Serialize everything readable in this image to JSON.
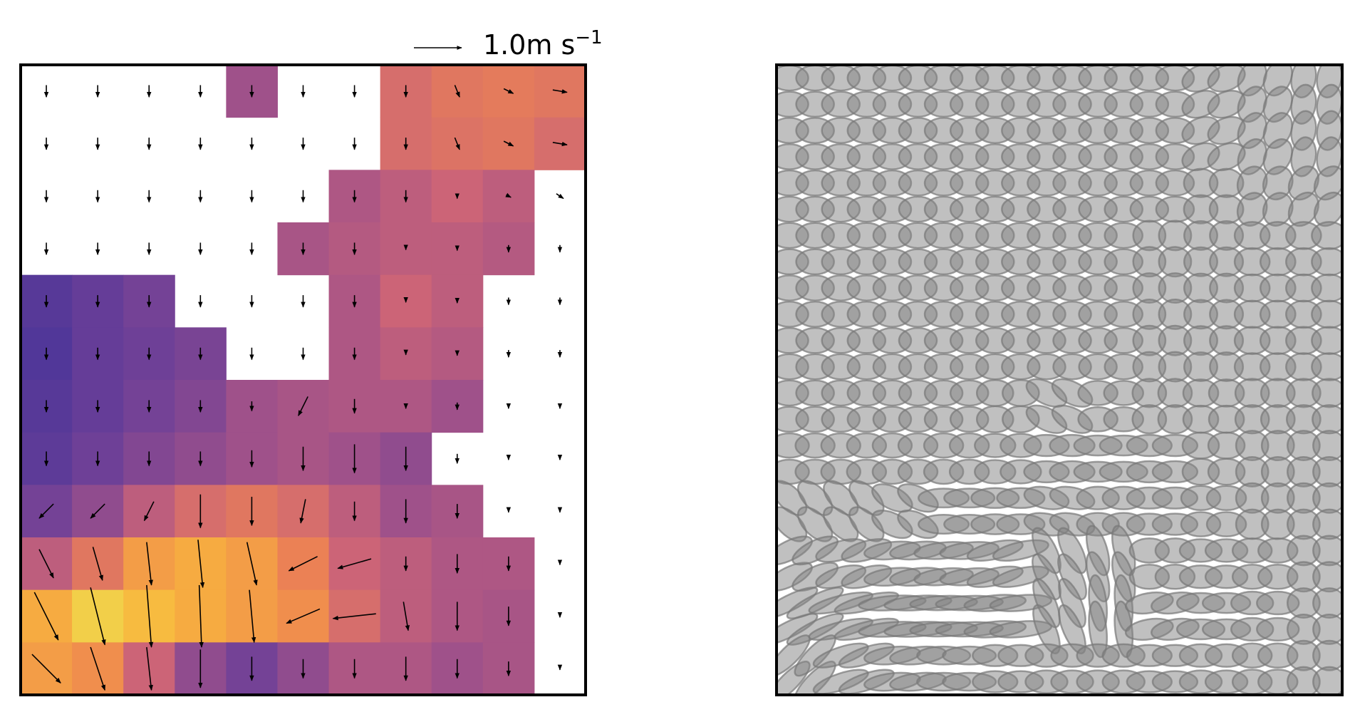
{
  "chart_data": {
    "type": "quiver",
    "key": {
      "value": 1.0,
      "label": "1.0m s",
      "exponent": "−1"
    },
    "colormap": [
      "#3a2f99",
      "#6a3f98",
      "#9a4f8c",
      "#cc6477",
      "#ee8451",
      "#f8b53d",
      "#e9f65c"
    ],
    "field": [
      [
        null,
        null,
        null,
        null,
        0.35,
        null,
        null,
        0.55,
        0.6,
        0.62,
        0.6
      ],
      [
        null,
        null,
        null,
        null,
        null,
        null,
        null,
        0.55,
        0.58,
        0.6,
        0.55
      ],
      [
        null,
        null,
        null,
        null,
        null,
        null,
        0.4,
        0.45,
        0.5,
        0.45,
        null
      ],
      [
        null,
        null,
        null,
        null,
        null,
        0.38,
        0.42,
        0.45,
        0.45,
        0.42,
        null
      ],
      [
        0.1,
        0.15,
        0.2,
        null,
        null,
        null,
        0.4,
        0.5,
        0.45,
        null,
        null
      ],
      [
        0.08,
        0.15,
        0.18,
        0.22,
        null,
        null,
        0.4,
        0.45,
        0.42,
        null,
        null
      ],
      [
        0.1,
        0.15,
        0.2,
        0.25,
        0.35,
        0.38,
        0.4,
        0.4,
        0.35,
        null,
        null
      ],
      [
        0.12,
        0.18,
        0.25,
        0.3,
        0.35,
        0.38,
        0.35,
        0.3,
        null,
        null,
        null
      ],
      [
        0.2,
        0.3,
        0.45,
        0.55,
        0.6,
        0.55,
        0.45,
        0.35,
        0.38,
        null,
        null
      ],
      [
        0.45,
        0.6,
        0.75,
        0.8,
        0.75,
        0.65,
        0.5,
        0.45,
        0.4,
        0.4,
        null
      ],
      [
        0.8,
        0.9,
        0.85,
        0.8,
        0.75,
        0.7,
        0.55,
        0.45,
        0.4,
        0.38,
        null
      ],
      [
        0.75,
        0.7,
        0.5,
        0.3,
        0.2,
        0.3,
        0.4,
        0.4,
        0.35,
        0.38,
        null
      ]
    ],
    "u": [
      [
        0,
        0,
        0,
        0,
        0,
        0,
        0,
        0,
        0.1,
        0.2,
        0.3
      ],
      [
        0,
        0,
        0,
        0,
        0,
        0,
        0,
        0,
        0.1,
        0.2,
        0.3
      ],
      [
        0,
        0,
        0,
        0,
        0,
        0,
        0,
        0,
        0,
        0.1,
        0.15
      ],
      [
        0,
        0,
        0,
        0,
        0,
        0,
        0,
        0,
        0,
        0,
        0
      ],
      [
        0,
        0,
        0,
        0,
        0,
        0,
        0,
        0,
        0,
        0,
        0
      ],
      [
        0,
        0,
        0,
        0,
        0,
        0,
        0,
        0,
        0,
        0,
        0
      ],
      [
        0,
        0,
        0,
        0,
        0,
        -0.2,
        0,
        0,
        0,
        0,
        0
      ],
      [
        0,
        0,
        0,
        0,
        0,
        0,
        0,
        0,
        0,
        0,
        0
      ],
      [
        -0.3,
        -0.3,
        -0.2,
        0,
        0,
        -0.1,
        0,
        0,
        0,
        0,
        0
      ],
      [
        0.3,
        0.2,
        0.1,
        0.1,
        0.2,
        -0.6,
        -0.7,
        0,
        0,
        0,
        0
      ],
      [
        0.5,
        0.3,
        0.1,
        0.05,
        0.1,
        -0.7,
        -0.9,
        0.1,
        0,
        0,
        0
      ],
      [
        0.6,
        0.3,
        0.1,
        0,
        0,
        0,
        0,
        0,
        0,
        0,
        0
      ]
    ],
    "v": [
      [
        -0.25,
        -0.25,
        -0.25,
        -0.25,
        -0.25,
        -0.25,
        -0.25,
        -0.25,
        -0.25,
        -0.1,
        -0.05
      ],
      [
        -0.25,
        -0.25,
        -0.25,
        -0.25,
        -0.25,
        -0.25,
        -0.25,
        -0.25,
        -0.25,
        -0.1,
        -0.05
      ],
      [
        -0.25,
        -0.25,
        -0.25,
        -0.25,
        -0.25,
        -0.25,
        -0.25,
        -0.25,
        -0.1,
        -0.05,
        -0.1
      ],
      [
        -0.25,
        -0.25,
        -0.25,
        -0.25,
        -0.25,
        -0.25,
        -0.25,
        -0.05,
        -0.08,
        -0.15,
        -0.15
      ],
      [
        -0.25,
        -0.25,
        -0.25,
        -0.25,
        -0.25,
        -0.25,
        -0.25,
        -0.05,
        -0.08,
        -0.15,
        -0.15
      ],
      [
        -0.25,
        -0.25,
        -0.25,
        -0.25,
        -0.25,
        -0.25,
        -0.25,
        -0.05,
        -0.08,
        -0.15,
        -0.15
      ],
      [
        -0.25,
        -0.25,
        -0.25,
        -0.25,
        -0.2,
        -0.4,
        -0.3,
        -0.1,
        -0.15,
        -0.1,
        -0.1
      ],
      [
        -0.3,
        -0.3,
        -0.3,
        -0.3,
        -0.35,
        -0.5,
        -0.6,
        -0.5,
        -0.2,
        -0.05,
        -0.05
      ],
      [
        -0.3,
        -0.3,
        -0.4,
        -0.7,
        -0.6,
        -0.5,
        -0.4,
        -0.5,
        -0.3,
        -0.05,
        -0.05
      ],
      [
        -0.6,
        -0.7,
        -0.9,
        -1.0,
        -0.9,
        -0.3,
        -0.2,
        -0.3,
        -0.4,
        -0.3,
        -0.05
      ],
      [
        -1.0,
        -1.2,
        -1.3,
        -1.3,
        -1.1,
        -0.3,
        -0.1,
        -0.6,
        -0.6,
        -0.4,
        -0.05
      ],
      [
        -0.6,
        -0.9,
        -0.9,
        -0.8,
        -0.5,
        -0.4,
        -0.4,
        -0.5,
        -0.4,
        -0.3,
        -0.05
      ]
    ]
  }
}
